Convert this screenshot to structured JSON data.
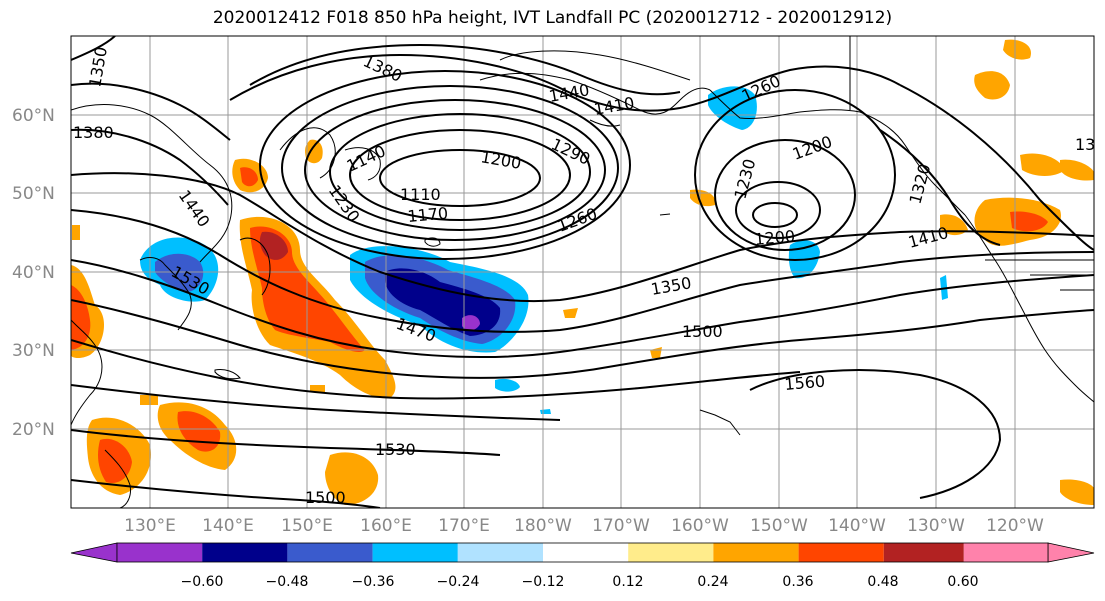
{
  "title": "2020012412 F018 850 hPa height, IVT Landfall PC (2020012712 - 2020012912)",
  "lat_labels": [
    "60°N",
    "50°N",
    "40°N",
    "30°N",
    "20°N"
  ],
  "lon_labels": [
    "130°E",
    "140°E",
    "150°E",
    "160°E",
    "170°E",
    "180°W",
    "170°W",
    "160°W",
    "150°W",
    "140°W",
    "130°W",
    "120°W"
  ],
  "contour_labels": [
    "1350",
    "1380",
    "1440",
    "1410",
    "1260",
    "1200",
    "1290",
    "1140",
    "1230",
    "1110",
    "1170",
    "1320",
    "1530",
    "1470",
    "1350",
    "1500",
    "1560",
    "1530",
    "1500",
    "1380",
    "1200",
    "1230",
    "1440",
    "1410"
  ],
  "colorbar": {
    "colors": [
      "#9932CC",
      "#00008B",
      "#3A5BCD",
      "#00BFFF",
      "#B0E2FF",
      "#FFFFFF",
      "#FFEC8B",
      "#FFA500",
      "#FF4500",
      "#B22222",
      "#FF82AB"
    ],
    "tick_labels": [
      "−0.60",
      "−0.48",
      "−0.36",
      "−0.24",
      "−0.12",
      "0.12",
      "0.24",
      "0.36",
      "0.48",
      "0.60"
    ]
  }
}
